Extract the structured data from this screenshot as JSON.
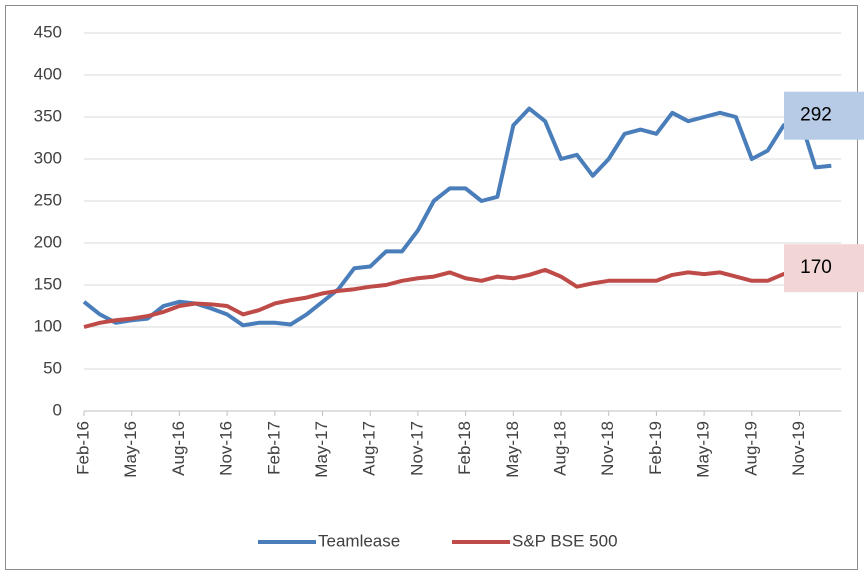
{
  "chart_data": {
    "type": "line",
    "categories": [
      "Feb-16",
      null,
      null,
      "May-16",
      null,
      null,
      "Aug-16",
      null,
      null,
      "Nov-16",
      null,
      null,
      "Feb-17",
      null,
      null,
      "May-17",
      null,
      null,
      "Aug-17",
      null,
      null,
      "Nov-17",
      null,
      null,
      "Feb-18",
      null,
      null,
      "May-18",
      null,
      null,
      "Aug-18",
      null,
      null,
      "Nov-18",
      null,
      null,
      "Feb-19",
      null,
      null,
      "May-19",
      null,
      null,
      "Aug-19",
      null,
      null,
      "Nov-19",
      null,
      null
    ],
    "series": [
      {
        "name": "Teamlease",
        "color": "#4a7ebb",
        "label_color": "#b7cbe6",
        "values": [
          130,
          115,
          105,
          108,
          110,
          125,
          130,
          128,
          122,
          115,
          102,
          105,
          105,
          103,
          115,
          130,
          145,
          170,
          172,
          190,
          190,
          215,
          250,
          265,
          265,
          250,
          255,
          340,
          360,
          345,
          300,
          305,
          280,
          300,
          330,
          335,
          330,
          355,
          345,
          350,
          355,
          350,
          300,
          310,
          340,
          350,
          290,
          292
        ]
      },
      {
        "name": "S&P BSE 500",
        "color": "#be4b48",
        "label_color": "#f2d6d6",
        "values": [
          100,
          105,
          108,
          110,
          113,
          118,
          125,
          128,
          127,
          125,
          115,
          120,
          128,
          132,
          135,
          140,
          143,
          145,
          148,
          150,
          155,
          158,
          160,
          165,
          158,
          155,
          160,
          158,
          162,
          168,
          160,
          148,
          152,
          155,
          155,
          155,
          155,
          162,
          165,
          163,
          165,
          160,
          155,
          155,
          163,
          167,
          170,
          170
        ]
      }
    ],
    "ylim": [
      0,
      450
    ],
    "yticks": [
      0,
      50,
      100,
      150,
      200,
      250,
      300,
      350,
      400,
      450
    ],
    "grid": true,
    "legend": "bottom"
  }
}
